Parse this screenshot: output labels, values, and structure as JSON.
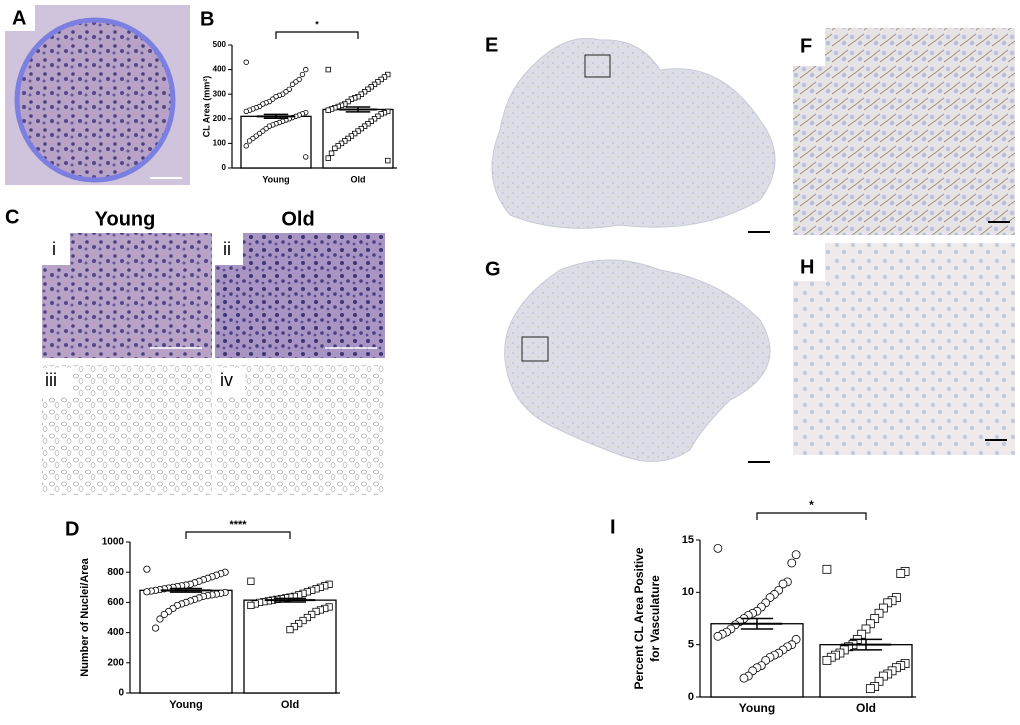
{
  "figure": {
    "panels": [
      {
        "label": "A"
      },
      {
        "label": "C",
        "columns": [
          "Young",
          "Old"
        ],
        "sublabels": [
          "i",
          "ii",
          "iii",
          "iv"
        ]
      },
      {
        "label": "E"
      },
      {
        "label": "F"
      },
      {
        "label": "G"
      },
      {
        "label": "H"
      }
    ]
  },
  "chart_data": [
    {
      "type": "bar",
      "panel": "B",
      "ylabel": [
        "CL Area (mm²)"
      ],
      "categories": [
        "Young",
        "Old"
      ],
      "values": [
        210,
        238
      ],
      "errors": [
        8,
        10
      ],
      "markers": [
        "circle",
        "square"
      ],
      "significance": "*",
      "ylim": [
        0,
        500
      ],
      "yticks": [
        0,
        100,
        200,
        300,
        400,
        500
      ],
      "points": [
        [
          430,
          400,
          380,
          360,
          350,
          340,
          320,
          310,
          300,
          295,
          290,
          280,
          270,
          265,
          260,
          250,
          245,
          240,
          235,
          230,
          225,
          220,
          215,
          210,
          205,
          200,
          195,
          190,
          185,
          180,
          175,
          170,
          160,
          150,
          140,
          130,
          120,
          110,
          90,
          45
        ],
        [
          400,
          380,
          370,
          360,
          350,
          340,
          330,
          320,
          310,
          300,
          290,
          285,
          280,
          270,
          260,
          255,
          250,
          245,
          240,
          235,
          230,
          225,
          220,
          210,
          200,
          190,
          180,
          170,
          160,
          150,
          140,
          130,
          120,
          110,
          100,
          90,
          80,
          60,
          40,
          30
        ]
      ]
    },
    {
      "type": "bar",
      "panel": "D",
      "ylabel": [
        "Number of Nuclei/Area"
      ],
      "categories": [
        "Young",
        "Old"
      ],
      "values": [
        680,
        615
      ],
      "errors": [
        12,
        12
      ],
      "markers": [
        "circle",
        "square"
      ],
      "significance": "****",
      "ylim": [
        0,
        1000
      ],
      "yticks": [
        0,
        200,
        400,
        600,
        800,
        1000
      ],
      "points": [
        [
          820,
          800,
          790,
          780,
          770,
          760,
          750,
          740,
          730,
          720,
          715,
          710,
          705,
          700,
          695,
          690,
          685,
          680,
          675,
          670,
          665,
          660,
          655,
          650,
          645,
          640,
          630,
          620,
          610,
          600,
          590,
          580,
          560,
          540,
          520,
          490,
          430
        ],
        [
          740,
          720,
          710,
          700,
          690,
          680,
          670,
          660,
          650,
          640,
          635,
          630,
          625,
          620,
          615,
          610,
          605,
          600,
          590,
          580,
          570,
          560,
          550,
          540,
          520,
          500,
          480,
          460,
          440,
          420
        ]
      ]
    },
    {
      "type": "bar",
      "panel": "I",
      "ylabel": [
        "Percent CL Area Positive",
        "for Vasculature"
      ],
      "categories": [
        "Young",
        "Old"
      ],
      "values": [
        7.0,
        5.0
      ],
      "errors": [
        0.5,
        0.5
      ],
      "markers": [
        "circle",
        "square"
      ],
      "significance": "*",
      "ylim": [
        0,
        15
      ],
      "yticks": [
        0,
        5,
        10,
        15
      ],
      "points": [
        [
          14.2,
          13.6,
          12.8,
          11.0,
          10.8,
          10.2,
          9.8,
          9.5,
          9.0,
          8.6,
          8.2,
          8.0,
          7.8,
          7.5,
          7.2,
          6.9,
          6.5,
          6.2,
          6.0,
          5.8,
          5.5,
          5.0,
          4.8,
          4.5,
          4.2,
          4.0,
          3.8,
          3.5,
          3.0,
          2.8,
          2.5,
          2.0,
          1.8
        ],
        [
          12.2,
          12.0,
          11.8,
          9.5,
          9.2,
          9.0,
          8.5,
          8.0,
          7.5,
          7.0,
          6.5,
          6.0,
          5.5,
          5.0,
          4.8,
          4.5,
          4.2,
          4.0,
          3.8,
          3.5,
          3.2,
          3.0,
          2.8,
          2.5,
          2.2,
          2.0,
          1.5,
          1.0,
          0.8
        ]
      ]
    }
  ]
}
